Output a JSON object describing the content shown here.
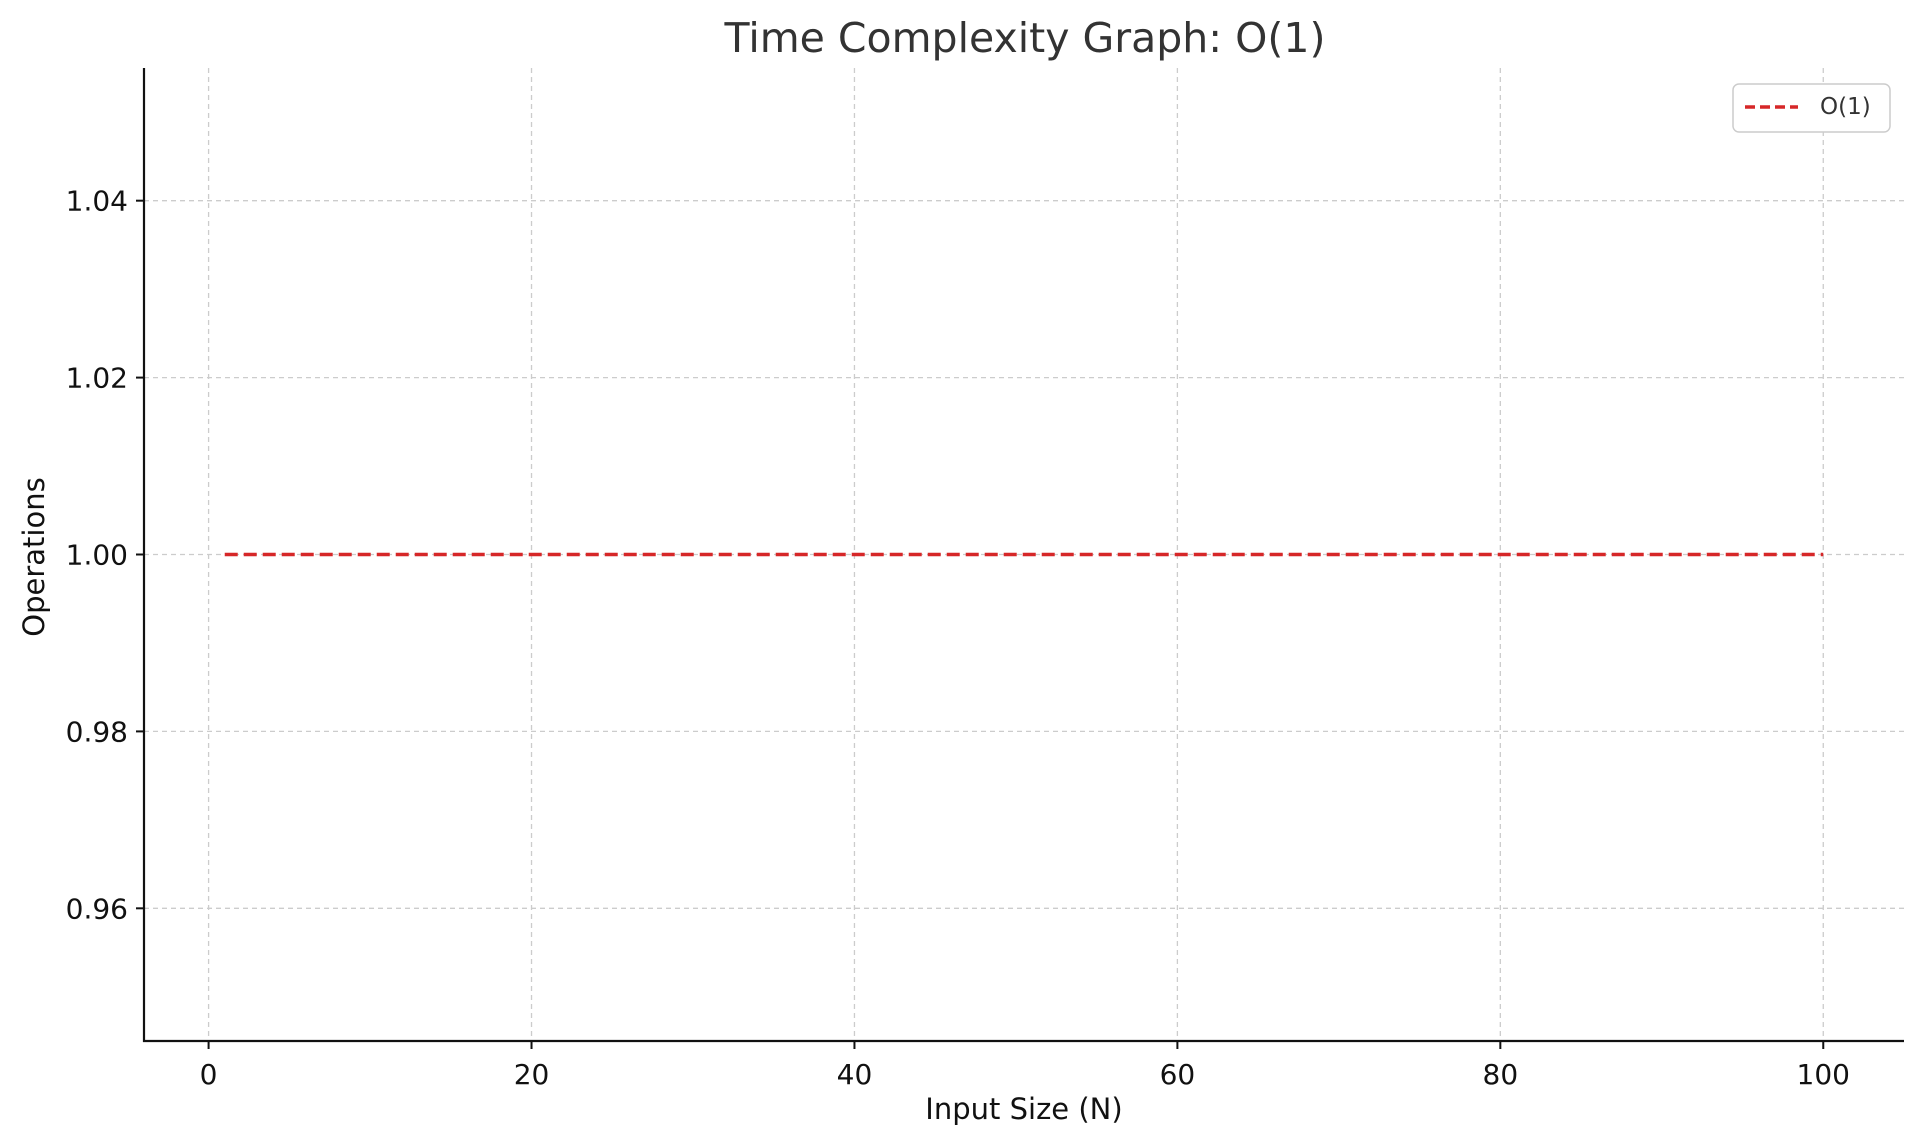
{
  "chart_data": {
    "type": "line",
    "title": "Time Complexity Graph: O(1)",
    "xlabel": "Input Size (N)",
    "ylabel": "Operations",
    "xlim": [
      -4,
      105
    ],
    "ylim": [
      0.945,
      1.055
    ],
    "xticks": [
      0,
      20,
      40,
      60,
      80,
      100
    ],
    "xtick_labels": [
      "0",
      "20",
      "40",
      "60",
      "80",
      "100"
    ],
    "yticks": [
      0.96,
      0.98,
      1.0,
      1.02,
      1.04
    ],
    "ytick_labels": [
      "0.96",
      "0.98",
      "1.00",
      "1.02",
      "1.04"
    ],
    "grid": true,
    "legend": {
      "position": "top-right",
      "entries": [
        "O(1)"
      ]
    },
    "series": [
      {
        "name": "O(1)",
        "color": "#d62728",
        "style": "dashed",
        "x": [
          1,
          100
        ],
        "y": [
          1.0,
          1.0
        ]
      }
    ]
  }
}
